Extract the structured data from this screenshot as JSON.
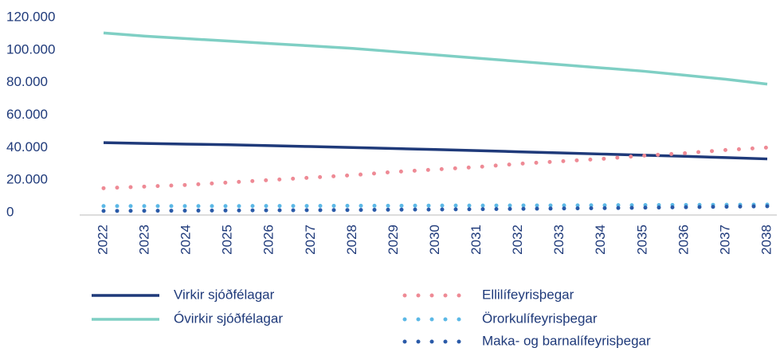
{
  "chart_data": {
    "type": "line",
    "categories": [
      "2022",
      "2023",
      "2024",
      "2025",
      "2026",
      "2027",
      "2028",
      "2029",
      "2030",
      "2031",
      "2032",
      "2033",
      "2034",
      "2035",
      "2036",
      "2037",
      "2038"
    ],
    "series": [
      {
        "name": "Virkir sjóðfélagar",
        "color": "#1f3a7a",
        "style": "solid",
        "values": [
          44500,
          44000,
          43600,
          43200,
          42700,
          42100,
          41500,
          40900,
          40300,
          39600,
          38900,
          38200,
          37500,
          36800,
          36100,
          35300,
          34500
        ]
      },
      {
        "name": "Óvirkir sjóðfélagar",
        "color": "#7fcfc4",
        "style": "solid",
        "values": [
          112000,
          110000,
          108500,
          107000,
          105500,
          104000,
          102500,
          100500,
          98500,
          96500,
          94500,
          92500,
          90500,
          88500,
          86000,
          83500,
          80500
        ]
      },
      {
        "name": "Ellilífeyrisþegar",
        "color": "#ee8a95",
        "style": "dotted",
        "values": [
          16500,
          17500,
          18500,
          20000,
          21500,
          23000,
          24500,
          26500,
          28000,
          29500,
          31500,
          33000,
          34500,
          36500,
          38000,
          40000,
          41500
        ]
      },
      {
        "name": "Örorkulífeyrisþegar",
        "color": "#5bb8e6",
        "style": "dotted",
        "values": [
          5500,
          5500,
          5500,
          5500,
          5600,
          5600,
          5700,
          5700,
          5800,
          5800,
          5900,
          5900,
          6000,
          6100,
          6200,
          6300,
          6400
        ]
      },
      {
        "name": "Maka- og barnalífeyrisþegar",
        "color": "#2a5aa8",
        "style": "dotted",
        "values": [
          2500,
          2600,
          2700,
          2800,
          2900,
          3000,
          3100,
          3300,
          3400,
          3600,
          3800,
          4000,
          4200,
          4500,
          4800,
          5100,
          5400
        ]
      }
    ],
    "ylim": [
      0,
      120000
    ],
    "yticks": [
      {
        "value": 0,
        "label": "0"
      },
      {
        "value": 20000,
        "label": "20.000"
      },
      {
        "value": 40000,
        "label": "40.000"
      },
      {
        "value": 60000,
        "label": "60.000"
      },
      {
        "value": 80000,
        "label": "80.000"
      },
      {
        "value": 100000,
        "label": "100.000"
      },
      {
        "value": 120000,
        "label": "120.000"
      }
    ],
    "grid": false
  }
}
